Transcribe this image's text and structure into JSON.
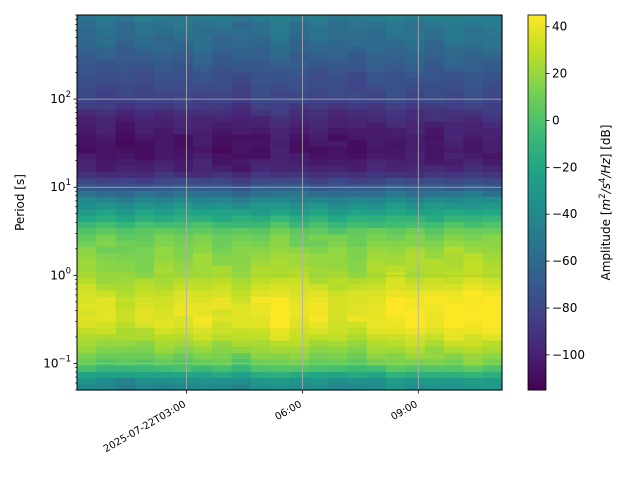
{
  "chart_data": {
    "type": "heatmap",
    "title": "",
    "xlabel": "",
    "ylabel": "Period [s]",
    "colorbar_label": "Amplitude [$m^2/s^4/Hz$] [dB]",
    "colormap": "viridis",
    "y_scale": "log",
    "ylim": [
      0.05,
      900
    ],
    "y_major_ticks": [
      0.1,
      1,
      10,
      100
    ],
    "y_tick_labels": [
      {
        "base": "10",
        "exp": "−1"
      },
      {
        "base": "10",
        "exp": "0"
      },
      {
        "base": "10",
        "exp": "1"
      },
      {
        "base": "10",
        "exp": "2"
      }
    ],
    "xlim": [
      "2025-07-22T00:10",
      "2025-07-22T11:10"
    ],
    "x_ticks": [
      "2025-07-22T03:00",
      "2025-07-22T06:00",
      "2025-07-22T09:00"
    ],
    "x_tick_labels": [
      "2025-07-22T03:00",
      "06:00",
      "09:00"
    ],
    "grid": true,
    "clim": [
      -115,
      45
    ],
    "colorbar_ticks": [
      40,
      20,
      0,
      -20,
      -40,
      -60,
      -80,
      -100
    ],
    "colorbar_tick_labels": [
      "40",
      "20",
      "0",
      "−20",
      "−40",
      "−60",
      "−80",
      "−100"
    ],
    "time_bins": [
      "00:10",
      "00:40",
      "01:10",
      "01:40",
      "02:10",
      "02:40",
      "03:10",
      "03:40",
      "04:10",
      "04:40",
      "05:10",
      "05:40",
      "06:10",
      "06:40",
      "07:10",
      "07:40",
      "08:10",
      "08:40",
      "09:10",
      "09:40",
      "10:10",
      "10:40"
    ],
    "period_profile": [
      {
        "period": 0.05,
        "db": -42
      },
      {
        "period": 0.06,
        "db": -38
      },
      {
        "period": 0.07,
        "db": -30
      },
      {
        "period": 0.08,
        "db": -12
      },
      {
        "period": 0.1,
        "db": 5
      },
      {
        "period": 0.15,
        "db": 18
      },
      {
        "period": 0.2,
        "db": 28
      },
      {
        "period": 0.3,
        "db": 38
      },
      {
        "period": 0.5,
        "db": 38
      },
      {
        "period": 0.8,
        "db": 28
      },
      {
        "period": 1.0,
        "db": 22
      },
      {
        "period": 2.0,
        "db": 15
      },
      {
        "period": 3.0,
        "db": 8
      },
      {
        "period": 5.0,
        "db": -22
      },
      {
        "period": 7.0,
        "db": -40
      },
      {
        "period": 10.0,
        "db": -70
      },
      {
        "period": 15.0,
        "db": -98
      },
      {
        "period": 25.0,
        "db": -108
      },
      {
        "period": 40.0,
        "db": -105
      },
      {
        "period": 70.0,
        "db": -95
      },
      {
        "period": 100.0,
        "db": -83
      },
      {
        "period": 200.0,
        "db": -75
      },
      {
        "period": 400.0,
        "db": -62
      },
      {
        "period": 700.0,
        "db": -55
      },
      {
        "period": 900.0,
        "db": -50
      }
    ],
    "time_offsets_db": [
      0,
      0,
      -2,
      0,
      1,
      1,
      2,
      0,
      -2,
      1,
      4,
      1,
      1,
      0,
      0,
      2,
      4,
      3,
      2,
      4,
      5,
      4
    ],
    "low_period_event_offsets_db": [
      0,
      -3,
      -6,
      -4,
      -2,
      -2,
      0,
      0,
      1,
      3,
      5,
      3,
      3,
      0,
      -1,
      2,
      4,
      5,
      5,
      6,
      7,
      6
    ]
  }
}
